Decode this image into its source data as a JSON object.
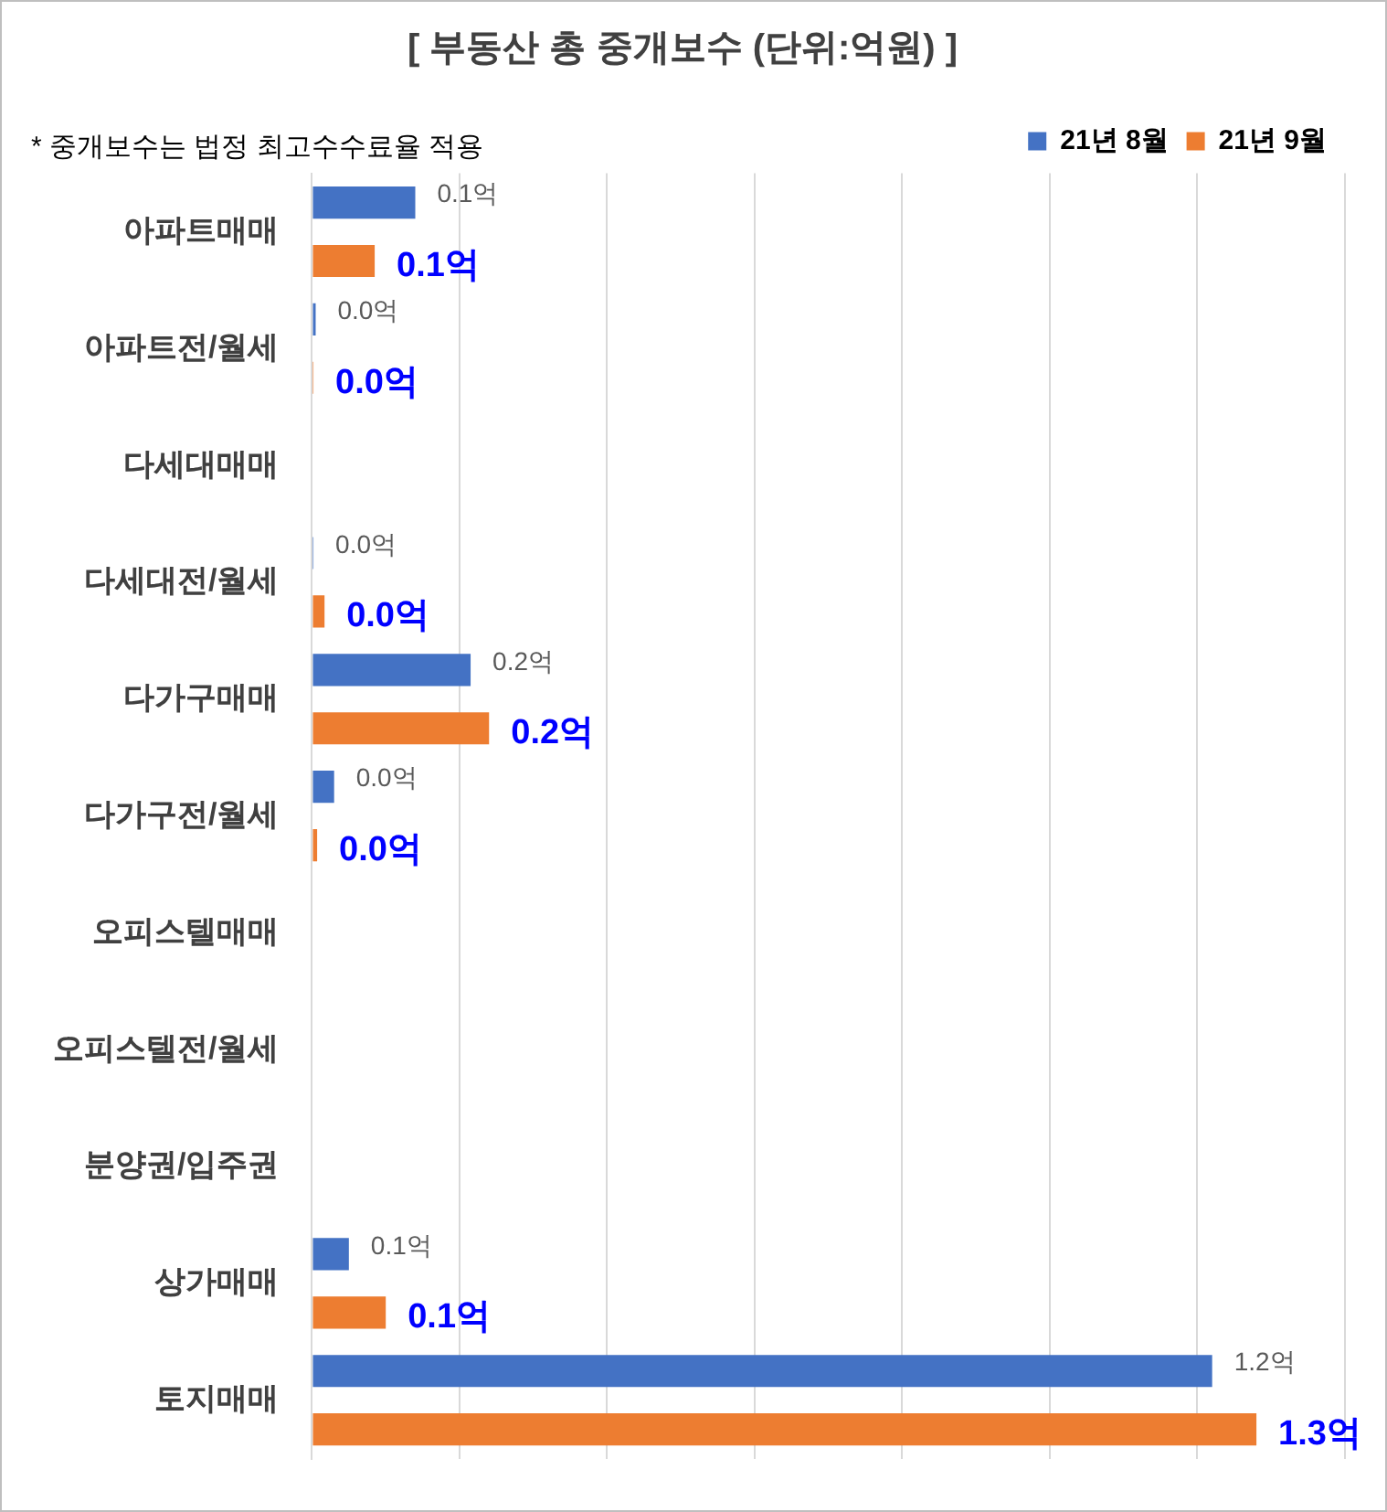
{
  "chart_data": {
    "type": "bar",
    "orientation": "horizontal",
    "title": "[ 부동산 총 중개보수 (단위:억원) ]",
    "annotations": [
      "* 중개보수는 법정 최고수수료율 적용"
    ],
    "categories": [
      "아파트매매",
      "아파트전/월세",
      "다세대매매",
      "다세대전/월세",
      "다가구매매",
      "다가구전/월세",
      "오피스텔매매",
      "오피스텔전/월세",
      "분양권/입주권",
      "상가매매",
      "토지매매"
    ],
    "series": [
      {
        "name": "21년 8월",
        "color": "#4472c4",
        "values": [
          0.14,
          0.005,
          null,
          0.002,
          0.215,
          0.03,
          null,
          null,
          null,
          0.05,
          1.22
        ],
        "value_labels": [
          "0.1억",
          "0.0억",
          null,
          "0.0억",
          "0.2억",
          "0.0억",
          null,
          null,
          null,
          "0.1억",
          "1.2억"
        ]
      },
      {
        "name": "21년 9월",
        "color": "#ed7d31",
        "values": [
          0.085,
          0.002,
          null,
          0.017,
          0.24,
          0.007,
          null,
          null,
          null,
          0.1,
          1.28
        ],
        "value_labels": [
          "0.1억",
          "0.0억",
          null,
          "0.0억",
          "0.2억",
          "0.0억",
          null,
          null,
          null,
          "0.1억",
          "1.3억"
        ]
      }
    ],
    "xlim": [
      0,
      1.4
    ],
    "xticks": [
      {
        "value": 0,
        "label": null
      },
      {
        "value": 0.2,
        "label": null
      },
      {
        "value": 0.4,
        "label": null
      },
      {
        "value": 0.6,
        "label": null
      },
      {
        "value": 0.8,
        "label": null
      },
      {
        "value": 1.0,
        "label": null
      },
      {
        "value": 1.2,
        "label": null
      },
      {
        "value": 1.4,
        "label": null
      }
    ],
    "grid": "x",
    "legend": "top right",
    "tick_labels": "y"
  }
}
